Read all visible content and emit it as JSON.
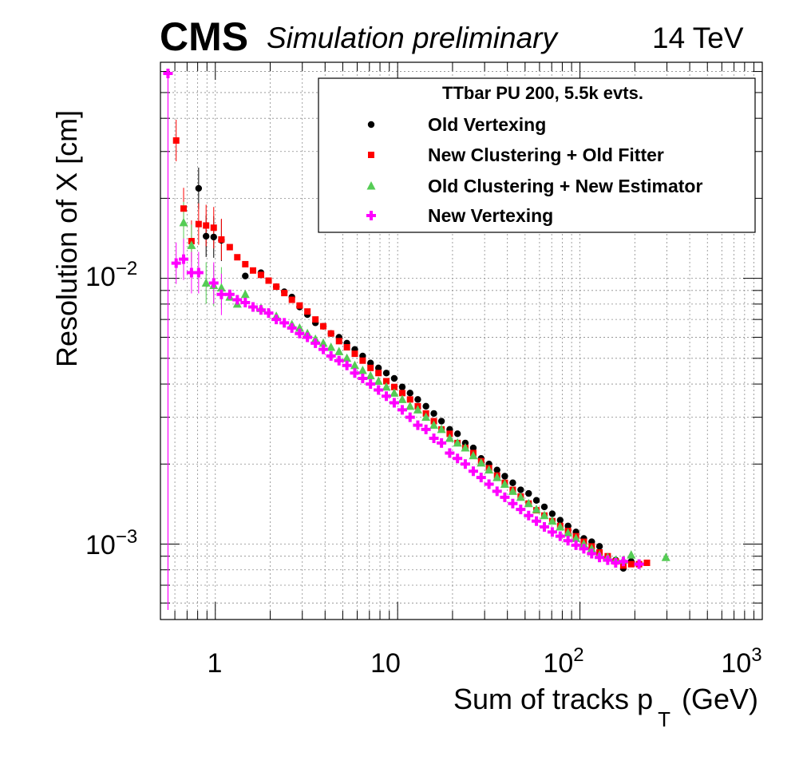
{
  "header": {
    "experiment": "CMS",
    "status": "Simulation preliminary",
    "energy": "14 TeV"
  },
  "chart_data": {
    "type": "scatter",
    "title": "",
    "xlabel": "Sum of tracks p",
    "xlabel_sub": "T",
    "xlabel_unit": "(GeV)",
    "ylabel": "Resolution of X [cm]",
    "xscale": "log",
    "yscale": "log",
    "xlim": [
      0.5,
      1000
    ],
    "ylim": [
      0.00052,
      0.065
    ],
    "grid": true,
    "x_ticks": [
      {
        "base": "1",
        "exp": ""
      },
      {
        "base": "10",
        "exp": ""
      },
      {
        "base": "10",
        "exp": "2"
      },
      {
        "base": "10",
        "exp": "3"
      }
    ],
    "y_ticks": [
      {
        "base": "10",
        "exp": "−3"
      },
      {
        "base": "10",
        "exp": "−2"
      }
    ],
    "legend": {
      "header": "TTbar PU 200, 5.5k evts.",
      "placement": "top-right"
    },
    "series": [
      {
        "name": "Old Vertexing",
        "marker": "circle",
        "color": "#000000",
        "points": [
          [
            0.81,
            0.0218
          ],
          [
            0.89,
            0.0144
          ],
          [
            0.98,
            0.0143
          ],
          [
            1.08,
            0.0139
          ],
          [
            1.46,
            0.0102
          ],
          [
            1.78,
            0.0105
          ],
          [
            2.16,
            0.0093
          ],
          [
            2.39,
            0.0089
          ],
          [
            2.63,
            0.0085
          ],
          [
            2.9,
            0.0078
          ],
          [
            3.2,
            0.0073
          ],
          [
            3.54,
            0.0068
          ],
          [
            3.91,
            0.0066
          ],
          [
            4.31,
            0.0062
          ],
          [
            4.77,
            0.006
          ],
          [
            5.27,
            0.0057
          ],
          [
            5.82,
            0.0054
          ],
          [
            6.43,
            0.0051
          ],
          [
            7.1,
            0.0048
          ],
          [
            7.85,
            0.0046
          ],
          [
            8.67,
            0.0044
          ],
          [
            9.58,
            0.0042
          ],
          [
            10.6,
            0.0039
          ],
          [
            11.7,
            0.0037
          ],
          [
            12.9,
            0.0035
          ],
          [
            14.3,
            0.0033
          ],
          [
            15.8,
            0.0031
          ],
          [
            17.4,
            0.0029
          ],
          [
            19.3,
            0.0027
          ],
          [
            21.3,
            0.0026
          ],
          [
            23.5,
            0.0024
          ],
          [
            26.0,
            0.0023
          ],
          [
            28.7,
            0.0021
          ],
          [
            31.7,
            0.002
          ],
          [
            35.1,
            0.0019
          ],
          [
            38.7,
            0.0018
          ],
          [
            42.8,
            0.0017
          ],
          [
            47.3,
            0.0016
          ],
          [
            52.3,
            0.00155
          ],
          [
            57.7,
            0.00146
          ],
          [
            63.8,
            0.00138
          ],
          [
            70.5,
            0.0013
          ],
          [
            77.9,
            0.00123
          ],
          [
            86.0,
            0.00117
          ],
          [
            95.1,
            0.00111
          ],
          [
            105,
            0.00105
          ],
          [
            116,
            0.00102
          ],
          [
            128,
            0.00098
          ],
          [
            142,
            0.00089
          ],
          [
            157,
            0.00087
          ],
          [
            173,
            0.00081
          ],
          [
            191,
            0.00086
          ]
        ]
      },
      {
        "name": "New Clustering + Old Fitter",
        "marker": "square",
        "color": "#ff0000",
        "points": [
          [
            0.61,
            0.033
          ],
          [
            0.67,
            0.0183
          ],
          [
            0.74,
            0.0138
          ],
          [
            0.81,
            0.016
          ],
          [
            0.89,
            0.0158
          ],
          [
            0.98,
            0.0155
          ],
          [
            1.08,
            0.014
          ],
          [
            1.2,
            0.0131
          ],
          [
            1.32,
            0.012
          ],
          [
            1.46,
            0.0113
          ],
          [
            1.61,
            0.0107
          ],
          [
            1.78,
            0.0103
          ],
          [
            1.96,
            0.0098
          ],
          [
            2.16,
            0.0093
          ],
          [
            2.39,
            0.0088
          ],
          [
            2.63,
            0.0083
          ],
          [
            2.9,
            0.0079
          ],
          [
            3.2,
            0.0075
          ],
          [
            3.54,
            0.007
          ],
          [
            3.91,
            0.0066
          ],
          [
            4.31,
            0.0062
          ],
          [
            4.77,
            0.0058
          ],
          [
            5.27,
            0.0055
          ],
          [
            5.82,
            0.0052
          ],
          [
            6.43,
            0.0049
          ],
          [
            7.1,
            0.0046
          ],
          [
            7.85,
            0.0044
          ],
          [
            8.67,
            0.0041
          ],
          [
            9.58,
            0.0039
          ],
          [
            10.6,
            0.0037
          ],
          [
            11.7,
            0.0035
          ],
          [
            12.9,
            0.0033
          ],
          [
            14.3,
            0.0031
          ],
          [
            15.8,
            0.0029
          ],
          [
            17.4,
            0.0027
          ],
          [
            19.3,
            0.0026
          ],
          [
            21.3,
            0.0024
          ],
          [
            23.5,
            0.0023
          ],
          [
            26.0,
            0.0022
          ],
          [
            28.7,
            0.00205
          ],
          [
            31.7,
            0.00193
          ],
          [
            35.1,
            0.00181
          ],
          [
            38.7,
            0.0017
          ],
          [
            42.8,
            0.0016
          ],
          [
            47.3,
            0.00151
          ],
          [
            52.3,
            0.00142
          ],
          [
            57.7,
            0.00134
          ],
          [
            63.8,
            0.00128
          ],
          [
            70.5,
            0.00122
          ],
          [
            77.9,
            0.00117
          ],
          [
            86.0,
            0.00112
          ],
          [
            95.1,
            0.00107
          ],
          [
            105,
            0.00102
          ],
          [
            116,
            0.00098
          ],
          [
            128,
            0.00093
          ],
          [
            142,
            0.0009
          ],
          [
            157,
            0.00086
          ],
          [
            173,
            0.00083
          ],
          [
            191,
            0.00084
          ],
          [
            211,
            0.00084
          ],
          [
            233,
            0.00085
          ]
        ]
      },
      {
        "name": "Old Clustering + New Estimator",
        "marker": "triangle",
        "color": "#55cc55",
        "points": [
          [
            0.67,
            0.0162
          ],
          [
            0.74,
            0.0133
          ],
          [
            0.89,
            0.0096
          ],
          [
            0.98,
            0.0094
          ],
          [
            1.08,
            0.0092
          ],
          [
            1.2,
            0.0085
          ],
          [
            1.32,
            0.008
          ],
          [
            1.46,
            0.0087
          ],
          [
            1.78,
            0.0077
          ],
          [
            2.16,
            0.0072
          ],
          [
            2.63,
            0.0067
          ],
          [
            2.9,
            0.0065
          ],
          [
            3.2,
            0.0062
          ],
          [
            3.54,
            0.0059
          ],
          [
            3.91,
            0.0057
          ],
          [
            4.31,
            0.0055
          ],
          [
            4.77,
            0.0053
          ],
          [
            5.27,
            0.005
          ],
          [
            5.82,
            0.0047
          ],
          [
            6.43,
            0.0045
          ],
          [
            7.1,
            0.0043
          ],
          [
            7.85,
            0.0041
          ],
          [
            8.67,
            0.0039
          ],
          [
            9.58,
            0.0037
          ],
          [
            10.6,
            0.0035
          ],
          [
            11.7,
            0.0033
          ],
          [
            12.9,
            0.0032
          ],
          [
            14.3,
            0.003
          ],
          [
            15.8,
            0.0028
          ],
          [
            17.4,
            0.0027
          ],
          [
            19.3,
            0.0025
          ],
          [
            21.3,
            0.0024
          ],
          [
            23.5,
            0.0023
          ],
          [
            26.0,
            0.00215
          ],
          [
            28.7,
            0.00202
          ],
          [
            31.7,
            0.0019
          ],
          [
            35.1,
            0.00178
          ],
          [
            38.7,
            0.00168
          ],
          [
            42.8,
            0.00158
          ],
          [
            47.3,
            0.0015
          ],
          [
            52.3,
            0.00142
          ],
          [
            57.7,
            0.00135
          ],
          [
            63.8,
            0.00128
          ],
          [
            70.5,
            0.00122
          ],
          [
            77.9,
            0.00116
          ],
          [
            86.0,
            0.0011
          ],
          [
            95.1,
            0.00105
          ],
          [
            105,
            0.001
          ],
          [
            116,
            0.00096
          ],
          [
            128,
            0.00091
          ],
          [
            142,
            0.00089
          ],
          [
            157,
            0.00087
          ],
          [
            173,
            0.00087
          ],
          [
            191,
            0.00091
          ],
          [
            296,
            0.00089
          ]
        ]
      },
      {
        "name": "New Vertexing",
        "marker": "cross",
        "color": "#ff00ff",
        "points": [
          [
            0.55,
            0.059
          ],
          [
            0.61,
            0.0114
          ],
          [
            0.67,
            0.0118
          ],
          [
            0.74,
            0.0105
          ],
          [
            0.81,
            0.0105
          ],
          [
            0.98,
            0.0096
          ],
          [
            1.08,
            0.0087
          ],
          [
            1.2,
            0.0087
          ],
          [
            1.32,
            0.0083
          ],
          [
            1.46,
            0.0081
          ],
          [
            1.61,
            0.0078
          ],
          [
            1.78,
            0.0076
          ],
          [
            1.96,
            0.0074
          ],
          [
            2.16,
            0.007
          ],
          [
            2.39,
            0.0068
          ],
          [
            2.63,
            0.0065
          ],
          [
            2.9,
            0.0062
          ],
          [
            3.2,
            0.006
          ],
          [
            3.54,
            0.0057
          ],
          [
            3.91,
            0.0054
          ],
          [
            4.31,
            0.0051
          ],
          [
            4.77,
            0.0049
          ],
          [
            5.27,
            0.0047
          ],
          [
            5.82,
            0.0044
          ],
          [
            6.43,
            0.0042
          ],
          [
            7.1,
            0.004
          ],
          [
            7.85,
            0.0038
          ],
          [
            8.67,
            0.0036
          ],
          [
            9.58,
            0.0034
          ],
          [
            10.6,
            0.0032
          ],
          [
            11.7,
            0.003
          ],
          [
            12.9,
            0.0028
          ],
          [
            14.3,
            0.0027
          ],
          [
            15.8,
            0.0025
          ],
          [
            17.4,
            0.0024
          ],
          [
            19.3,
            0.0022
          ],
          [
            21.3,
            0.0021
          ],
          [
            23.5,
            0.002
          ],
          [
            26.0,
            0.00188
          ],
          [
            28.7,
            0.00178
          ],
          [
            31.7,
            0.00168
          ],
          [
            35.1,
            0.00158
          ],
          [
            38.7,
            0.0015
          ],
          [
            42.8,
            0.00142
          ],
          [
            47.3,
            0.00135
          ],
          [
            52.3,
            0.00128
          ],
          [
            57.7,
            0.00122
          ],
          [
            63.8,
            0.00116
          ],
          [
            70.5,
            0.00111
          ],
          [
            77.9,
            0.00107
          ],
          [
            86.0,
            0.00103
          ],
          [
            95.1,
            0.00099
          ],
          [
            105,
            0.00096
          ],
          [
            116,
            0.00092
          ],
          [
            128,
            0.00089
          ],
          [
            142,
            0.00087
          ],
          [
            157,
            0.00085
          ],
          [
            173,
            0.00086
          ],
          [
            211,
            0.00084
          ]
        ]
      }
    ]
  }
}
